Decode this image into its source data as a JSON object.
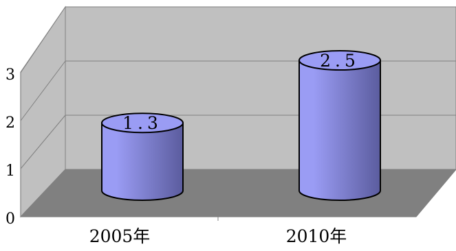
{
  "chart_data": {
    "type": "bar",
    "style": "3d-cylinder",
    "categories": [
      "2005年",
      "2010年"
    ],
    "values": [
      1.3,
      2.5
    ],
    "data_labels": [
      "1.3",
      "2.5"
    ],
    "yticks": [
      "0",
      "1",
      "2",
      "3"
    ],
    "ylim": [
      0,
      3
    ],
    "grid": true,
    "legend": "none",
    "colors": {
      "bar": "#9a9cf4",
      "bar_dark": "#5b5c9e",
      "back_wall": "#c0c0c0",
      "side_wall": "#c0c0c0",
      "floor": "#808080",
      "stroke": "#000000"
    }
  }
}
